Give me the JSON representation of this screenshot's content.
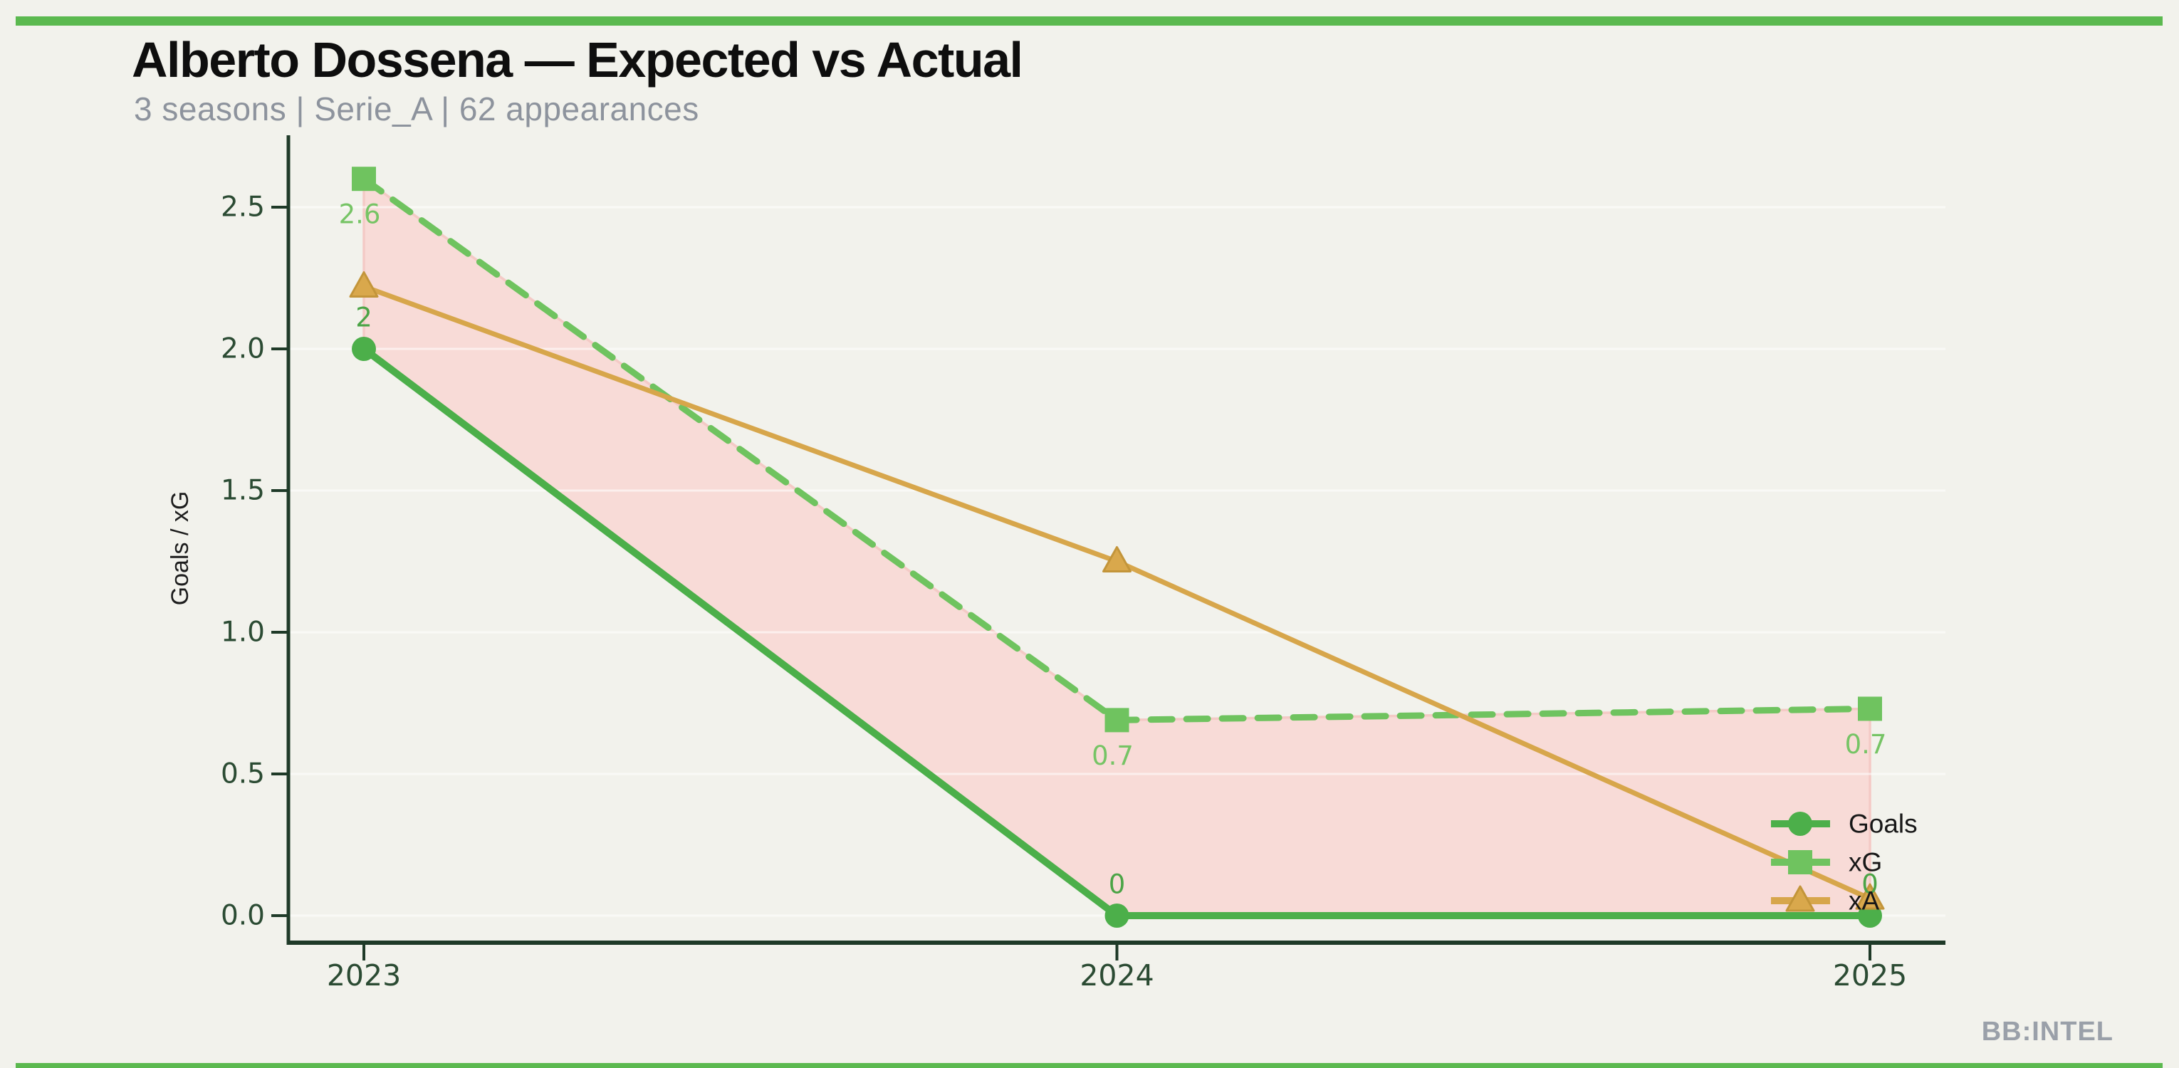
{
  "header": {
    "title": "Alberto Dossena — Expected vs Actual",
    "subtitle": "3 seasons | Serie_A | 62 appearances"
  },
  "watermark": "BB:INTEL",
  "colors": {
    "background": "#f2f2ec",
    "accent_bar": "#5bb94f",
    "title": "#0e0e0e",
    "subtitle": "#8d939d",
    "watermark_gray": "#9aa0a9",
    "axis_spine": "#1f3a28",
    "tick_label": "#2b4b33",
    "axis_title": "#1d1d1d",
    "legend_label": "#171717",
    "goals_green": "#4caf4a",
    "goals_label": "#4ba446",
    "xg_green": "#6fc35f",
    "xg_label": "#76c465",
    "xa_tan": "#d7a64b",
    "xa_marker_fill": "#d9a84c",
    "xa_marker_edge": "#c3953a",
    "area_fill": "#f8dbd7",
    "area_edge": "#f4cac6",
    "gridline": "rgba(255,255,255,0.55)"
  },
  "chart_data": {
    "type": "line",
    "title": "Alberto Dossena — Expected vs Actual",
    "subtitle": "3 seasons | Serie_A | 62 appearances",
    "x": [
      "2023",
      "2024",
      "2025"
    ],
    "xlabel": "",
    "ylabel": "Goals / xG",
    "ylim": [
      0,
      2.75
    ],
    "yticks": [
      "0.0",
      "0.5",
      "1.0",
      "1.5",
      "2.0",
      "2.5"
    ],
    "ytick_values": [
      0.0,
      0.5,
      1.0,
      1.5,
      2.0,
      2.5
    ],
    "grid": "horizontal-faint",
    "legend_position": "lower right",
    "series": [
      {
        "name": "Goals",
        "marker": "circle",
        "line_style": "solid",
        "color": "#4caf4a",
        "values": [
          2,
          0,
          0
        ],
        "labels": [
          "2",
          "0",
          "0"
        ],
        "label_side": "above"
      },
      {
        "name": "xG",
        "marker": "square",
        "line_style": "dashed",
        "color": "#6fc35f",
        "values": [
          2.6,
          0.69,
          0.73
        ],
        "labels": [
          "2.6",
          "0.7",
          "0.7"
        ],
        "label_side": "below"
      },
      {
        "name": "xA",
        "marker": "triangle",
        "line_style": "solid",
        "color": "#d7a64b",
        "values": [
          2.22,
          1.25,
          0.06
        ],
        "labels": null,
        "label_side": null
      }
    ],
    "shaded_area": {
      "between": [
        "Goals",
        "xG"
      ],
      "fill": "#f8dbd7",
      "meaning": "gap between expected (xG) and actual goals"
    }
  }
}
